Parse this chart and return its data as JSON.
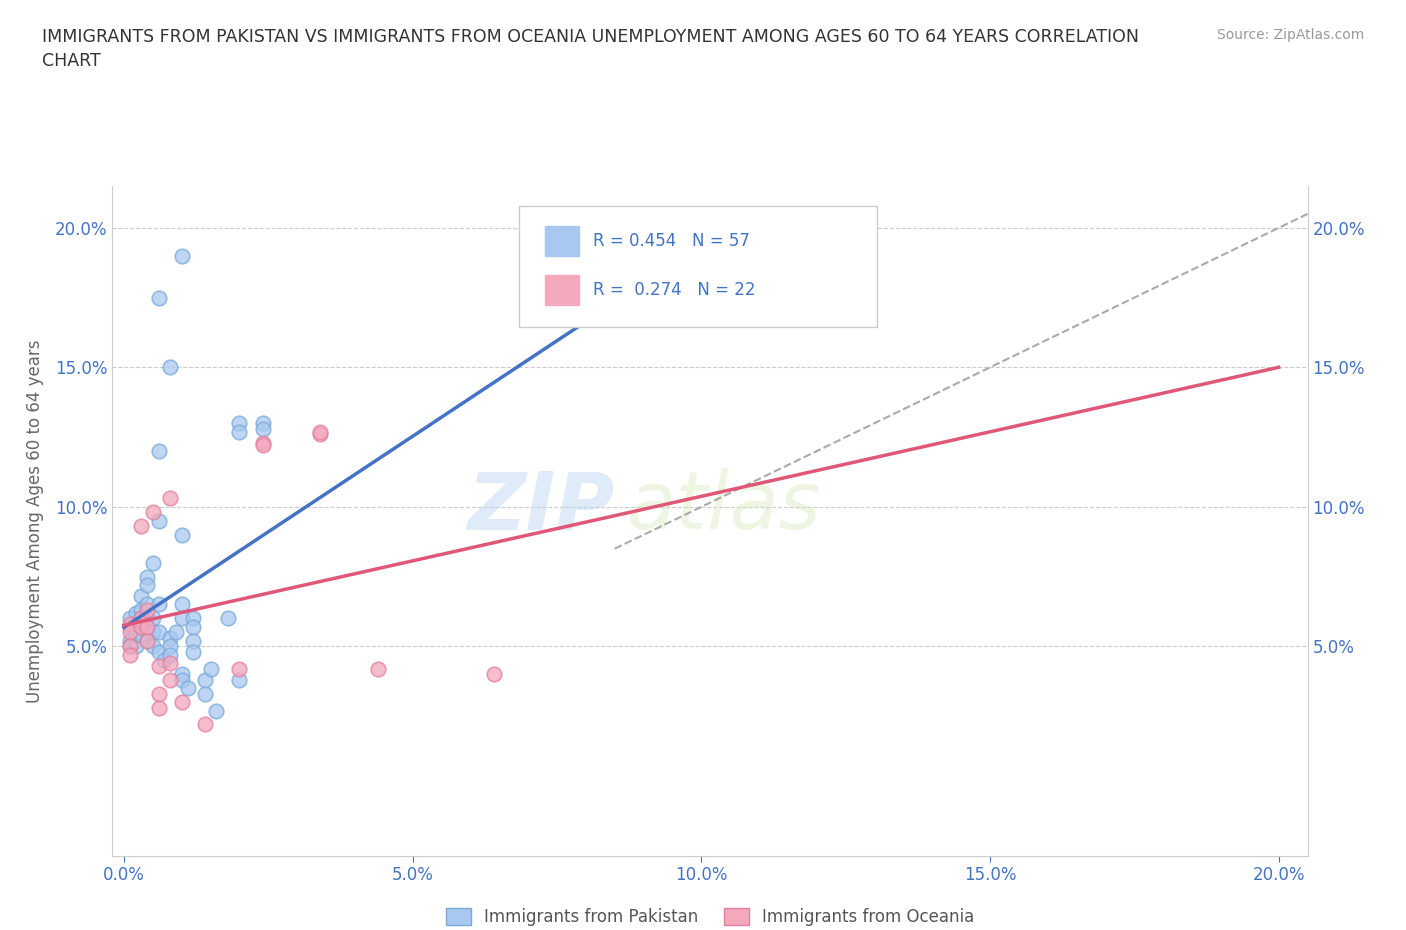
{
  "title": "IMMIGRANTS FROM PAKISTAN VS IMMIGRANTS FROM OCEANIA UNEMPLOYMENT AMONG AGES 60 TO 64 YEARS CORRELATION\nCHART",
  "source": "Source: ZipAtlas.com",
  "ylabel": "Unemployment Among Ages 60 to 64 years",
  "xlim": [
    -0.002,
    0.205
  ],
  "ylim": [
    -0.025,
    0.215
  ],
  "xticks": [
    0.0,
    0.05,
    0.1,
    0.15,
    0.2
  ],
  "yticks": [
    0.0,
    0.05,
    0.1,
    0.15,
    0.2
  ],
  "xticklabels": [
    "0.0%",
    "5.0%",
    "10.0%",
    "15.0%",
    "20.0%"
  ],
  "left_yticklabels": [
    "",
    "5.0%",
    "10.0%",
    "15.0%",
    "20.0%"
  ],
  "right_yticklabels": [
    "",
    "5.0%",
    "10.0%",
    "15.0%",
    "20.0%"
  ],
  "pakistan_color": "#a8c8f0",
  "oceania_color": "#f4a8bc",
  "pakistan_line_color": "#4472c4",
  "oceania_line_color": "#e05878",
  "legend_R_color": "#4472c4",
  "watermark": "ZIPatlas",
  "pakistan_scatter": [
    [
      0.001,
      0.06
    ],
    [
      0.001,
      0.057
    ],
    [
      0.001,
      0.052
    ],
    [
      0.001,
      0.05
    ],
    [
      0.002,
      0.062
    ],
    [
      0.002,
      0.058
    ],
    [
      0.002,
      0.054
    ],
    [
      0.002,
      0.05
    ],
    [
      0.003,
      0.068
    ],
    [
      0.003,
      0.063
    ],
    [
      0.003,
      0.06
    ],
    [
      0.003,
      0.058
    ],
    [
      0.003,
      0.054
    ],
    [
      0.004,
      0.075
    ],
    [
      0.004,
      0.072
    ],
    [
      0.004,
      0.065
    ],
    [
      0.004,
      0.06
    ],
    [
      0.004,
      0.057
    ],
    [
      0.004,
      0.055
    ],
    [
      0.004,
      0.052
    ],
    [
      0.005,
      0.08
    ],
    [
      0.005,
      0.06
    ],
    [
      0.005,
      0.055
    ],
    [
      0.005,
      0.05
    ],
    [
      0.006,
      0.12
    ],
    [
      0.006,
      0.095
    ],
    [
      0.006,
      0.065
    ],
    [
      0.006,
      0.055
    ],
    [
      0.006,
      0.048
    ],
    [
      0.007,
      0.045
    ],
    [
      0.008,
      0.053
    ],
    [
      0.008,
      0.05
    ],
    [
      0.008,
      0.047
    ],
    [
      0.009,
      0.055
    ],
    [
      0.01,
      0.09
    ],
    [
      0.01,
      0.065
    ],
    [
      0.01,
      0.06
    ],
    [
      0.01,
      0.04
    ],
    [
      0.01,
      0.038
    ],
    [
      0.011,
      0.035
    ],
    [
      0.012,
      0.06
    ],
    [
      0.012,
      0.057
    ],
    [
      0.012,
      0.052
    ],
    [
      0.012,
      0.048
    ],
    [
      0.014,
      0.038
    ],
    [
      0.014,
      0.033
    ],
    [
      0.015,
      0.042
    ],
    [
      0.016,
      0.027
    ],
    [
      0.018,
      0.06
    ],
    [
      0.02,
      0.13
    ],
    [
      0.02,
      0.127
    ],
    [
      0.024,
      0.13
    ],
    [
      0.024,
      0.128
    ],
    [
      0.008,
      0.15
    ],
    [
      0.01,
      0.19
    ],
    [
      0.006,
      0.175
    ],
    [
      0.02,
      0.038
    ]
  ],
  "oceania_scatter": [
    [
      0.001,
      0.058
    ],
    [
      0.001,
      0.055
    ],
    [
      0.001,
      0.05
    ],
    [
      0.001,
      0.047
    ],
    [
      0.003,
      0.06
    ],
    [
      0.003,
      0.057
    ],
    [
      0.003,
      0.093
    ],
    [
      0.004,
      0.063
    ],
    [
      0.004,
      0.057
    ],
    [
      0.004,
      0.052
    ],
    [
      0.005,
      0.098
    ],
    [
      0.006,
      0.043
    ],
    [
      0.006,
      0.033
    ],
    [
      0.006,
      0.028
    ],
    [
      0.008,
      0.103
    ],
    [
      0.008,
      0.044
    ],
    [
      0.008,
      0.038
    ],
    [
      0.01,
      0.03
    ],
    [
      0.014,
      0.022
    ],
    [
      0.02,
      0.042
    ],
    [
      0.024,
      0.123
    ],
    [
      0.024,
      0.122
    ],
    [
      0.034,
      0.126
    ],
    [
      0.034,
      0.127
    ],
    [
      0.044,
      0.042
    ],
    [
      0.064,
      0.04
    ]
  ],
  "background_color": "#ffffff",
  "grid_color": "#cccccc",
  "tick_color": "#4472c4",
  "pakistan_reg_slope": 1.15,
  "pakistan_reg_intercept": 0.035,
  "oceania_reg_slope": 0.28,
  "oceania_reg_intercept": 0.04
}
